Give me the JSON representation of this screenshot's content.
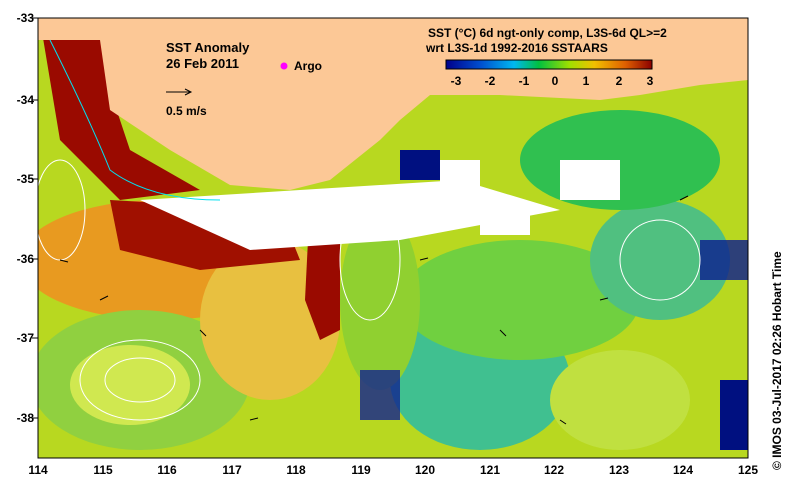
{
  "map": {
    "title": "SST Anomaly",
    "date": "26 Feb 2011",
    "argo_label": "Argo",
    "scale_label": "0.5 m/s",
    "product_line1": "SST (°C) 6d ngt-only comp, L3S-6d QL>=2",
    "product_line2": "wrt L3S-1d 1992-2016 SSTAARS",
    "colorbar": {
      "ticks": [
        "-3",
        "-2",
        "-1",
        "0",
        "1",
        "2",
        "3"
      ],
      "range": [
        -3,
        3
      ],
      "colors": [
        "#00008b",
        "#0050d0",
        "#00b8f0",
        "#00c040",
        "#a0e000",
        "#f0c000",
        "#e06000",
        "#8b0000"
      ]
    },
    "lat_ticks": [
      "-33",
      "-34",
      "-35",
      "-36",
      "-37",
      "-38"
    ],
    "lon_ticks": [
      "114",
      "115",
      "116",
      "117",
      "118",
      "119",
      "120",
      "121",
      "122",
      "123",
      "124",
      "125"
    ],
    "credit": "© IMOS 03-Jul-2017 02:26 Hobart Time",
    "colors": {
      "land": "#fcc896",
      "argo": "#ff00ff"
    }
  }
}
